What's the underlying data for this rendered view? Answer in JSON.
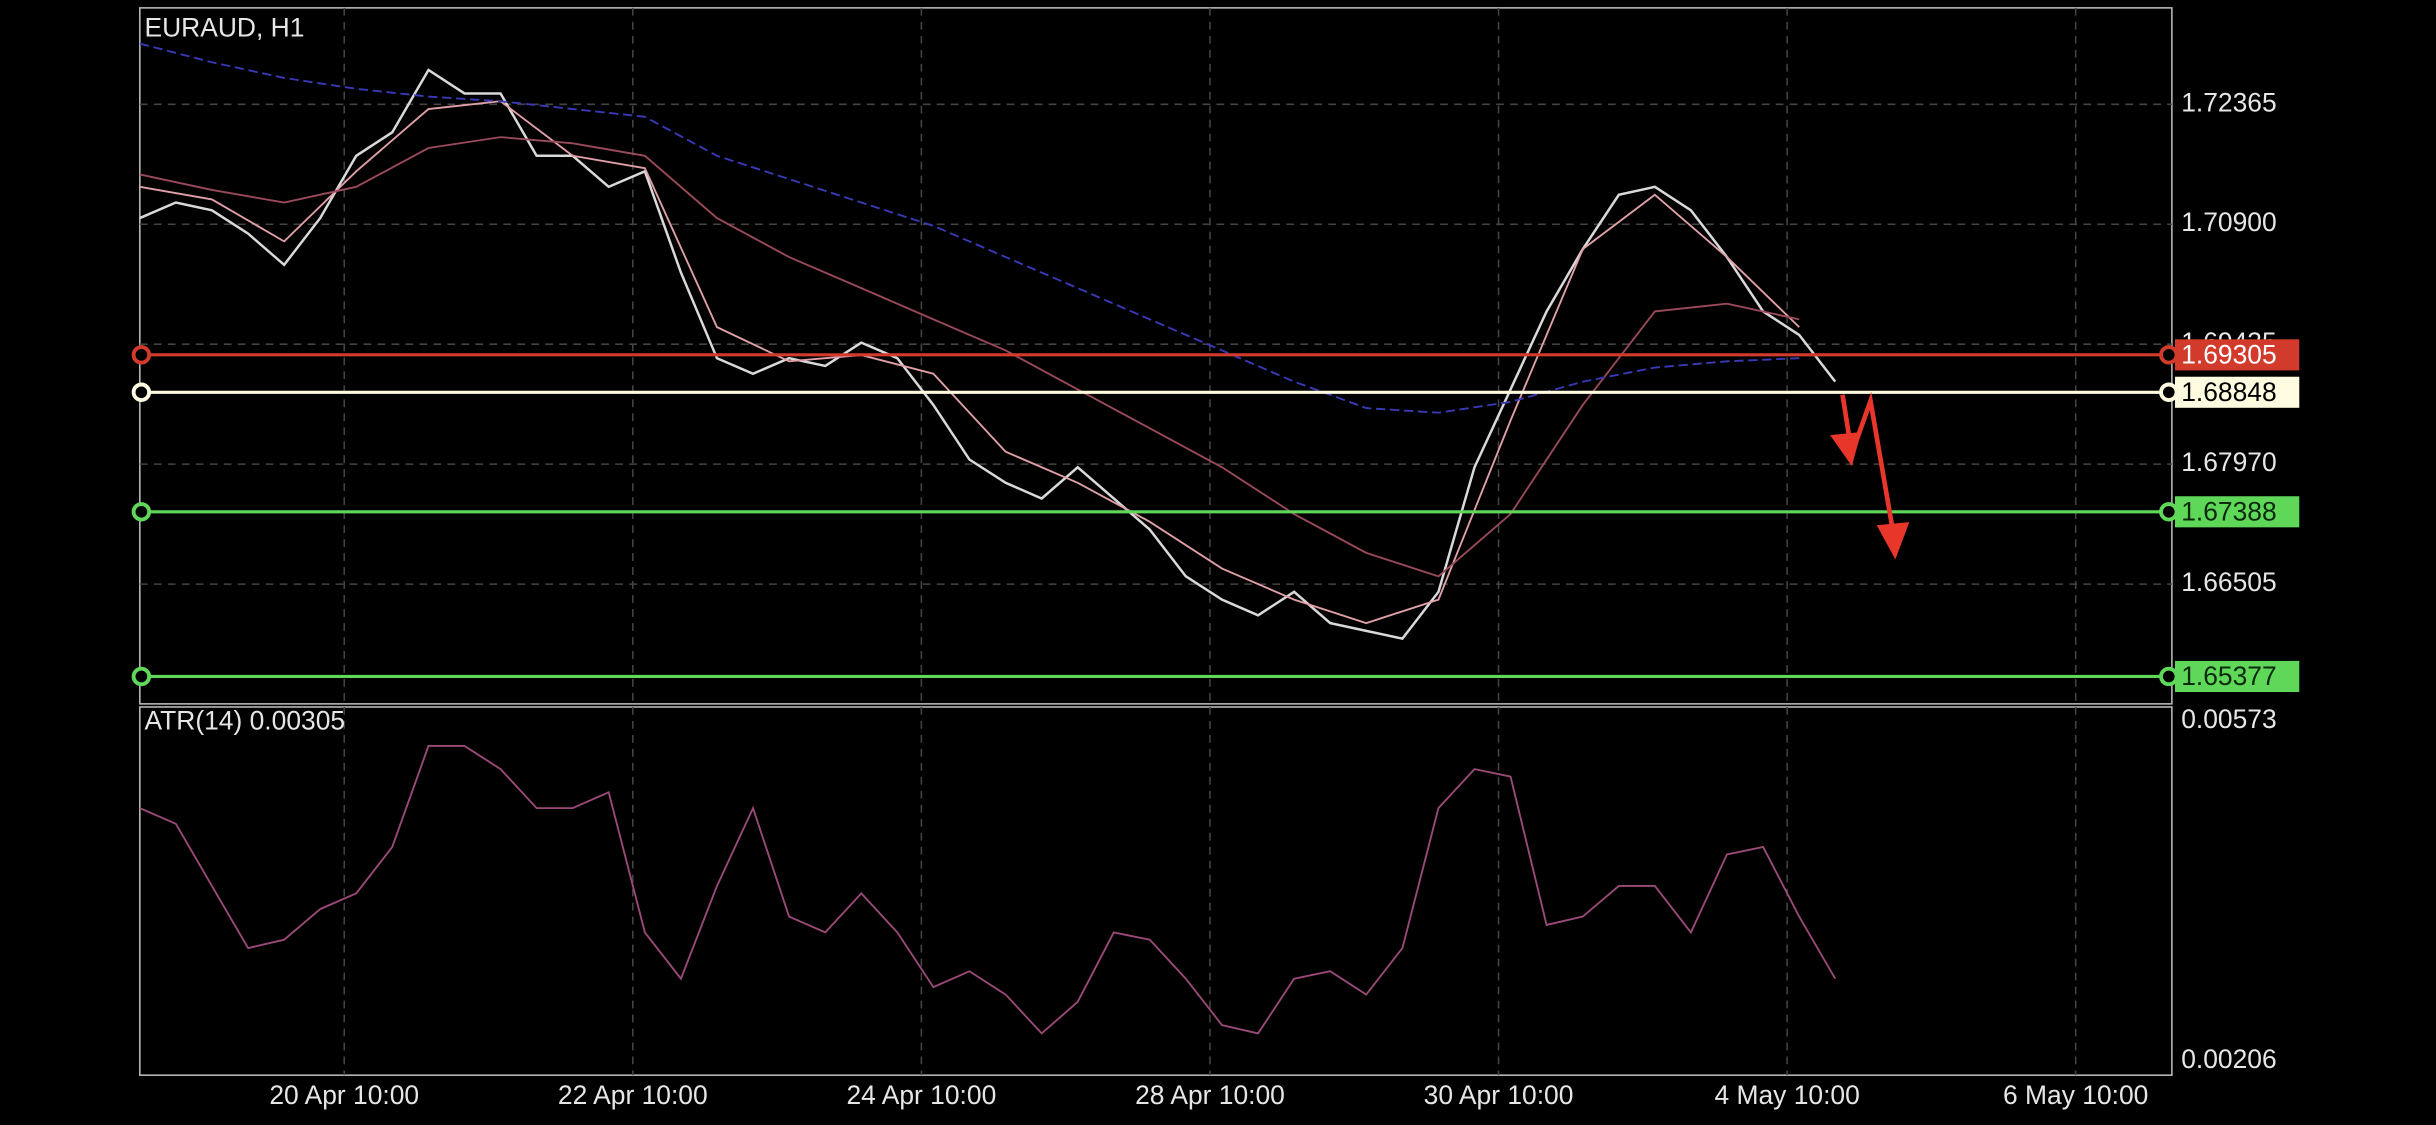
{
  "chart_data": [
    {
      "type": "line",
      "title": "EURAUD, H1",
      "xlim": [
        0,
        338
      ],
      "xticks": [
        {
          "value": 34,
          "label": "20 Apr 10:00"
        },
        {
          "value": 82,
          "label": "22 Apr 10:00"
        },
        {
          "value": 130,
          "label": "24 Apr 10:00"
        },
        {
          "value": 178,
          "label": "28 Apr 10:00"
        },
        {
          "value": 226,
          "label": "30 Apr 10:00"
        },
        {
          "value": 274,
          "label": "4 May 10:00"
        },
        {
          "value": 322,
          "label": "6 May 10:00"
        }
      ],
      "ylim": [
        1.65042,
        1.73543
      ],
      "yticks": [
        1.72365,
        {
          "value": 1.709,
          "label": "1.70900"
        },
        1.69435,
        {
          "value": 1.6797,
          "label": "1.67970"
        },
        1.66505
      ],
      "grid": true,
      "series": [
        {
          "color": "#d9d9d9",
          "x": [
            0,
            6,
            12,
            18,
            24,
            30,
            36,
            42,
            48,
            54,
            60,
            66,
            72,
            78,
            84,
            90,
            96,
            102,
            108,
            114,
            120,
            126,
            132,
            138,
            144,
            150,
            156,
            162,
            168,
            174,
            180,
            186,
            192,
            198,
            204,
            210,
            216,
            222,
            228,
            234,
            240,
            246,
            252,
            258,
            264,
            270,
            276,
            282
          ],
          "values": [
            1.70976,
            1.71166,
            1.71071,
            1.70786,
            1.70405,
            1.70976,
            1.71737,
            1.72023,
            1.72784,
            1.72498,
            1.72498,
            1.71737,
            1.71737,
            1.71357,
            1.71547,
            1.7031,
            1.69264,
            1.69074,
            1.69264,
            1.69169,
            1.69454,
            1.69264,
            1.68693,
            1.68027,
            1.67742,
            1.67551,
            1.67932,
            1.67551,
            1.67171,
            1.666,
            1.66315,
            1.66124,
            1.6641,
            1.66029,
            1.65934,
            1.65839,
            1.6641,
            1.67932,
            1.68883,
            1.69835,
            1.70596,
            1.71261,
            1.71357,
            1.71071,
            1.705,
            1.69835,
            1.69549,
            1.68978
          ]
        },
        {
          "color": "#e0a0a8",
          "x": [
            0,
            12,
            24,
            36,
            48,
            60,
            72,
            84,
            96,
            108,
            120,
            132,
            144,
            156,
            168,
            180,
            192,
            204,
            216,
            228,
            240,
            252,
            264,
            276
          ],
          "values": [
            1.71357,
            1.71204,
            1.70691,
            1.71547,
            1.72308,
            1.72403,
            1.71737,
            1.71585,
            1.69644,
            1.69226,
            1.69302,
            1.69074,
            1.68122,
            1.67742,
            1.67266,
            1.66695,
            1.66315,
            1.66029,
            1.66315,
            1.68503,
            1.70596,
            1.71261,
            1.705,
            1.69644
          ]
        },
        {
          "color": "#9a4a5a",
          "x": [
            0,
            12,
            24,
            36,
            48,
            60,
            72,
            84,
            96,
            108,
            120,
            132,
            144,
            156,
            168,
            180,
            192,
            204,
            216,
            228,
            240,
            252,
            264,
            276
          ],
          "values": [
            1.71509,
            1.71319,
            1.71166,
            1.71357,
            1.71832,
            1.71965,
            1.71889,
            1.71737,
            1.70976,
            1.705,
            1.7012,
            1.69739,
            1.69359,
            1.68883,
            1.68408,
            1.67932,
            1.67361,
            1.66886,
            1.666,
            1.67361,
            1.68693,
            1.69835,
            1.6993,
            1.69739
          ]
        },
        {
          "color": "#3a3ab8",
          "dashed": true,
          "x": [
            0,
            12,
            24,
            36,
            48,
            60,
            72,
            84,
            96,
            108,
            120,
            132,
            144,
            156,
            168,
            180,
            192,
            204,
            216,
            228,
            240,
            252,
            264,
            276
          ],
          "values": [
            1.73107,
            1.72879,
            1.72688,
            1.72555,
            1.7246,
            1.72403,
            1.72308,
            1.72213,
            1.71737,
            1.71452,
            1.71166,
            1.70881,
            1.705,
            1.7012,
            1.69739,
            1.69359,
            1.68978,
            1.68655,
            1.68598,
            1.68731,
            1.68978,
            1.6915,
            1.69226,
            1.69264
          ]
        }
      ],
      "levels": [
        {
          "value": 1.69305,
          "color": "#d23a2c",
          "text_color": "#ffffff"
        },
        {
          "value": 1.68848,
          "color": "#fffbe0",
          "text_color": "#000000"
        },
        {
          "value": 1.67388,
          "color": "#5fd85a",
          "text_color": "#0a2a0a"
        },
        {
          "value": 1.65377,
          "color": "#5fd85a",
          "text_color": "#0a2a0a"
        }
      ]
    },
    {
      "type": "line",
      "title": "ATR(14) 0.00305",
      "ylim": [
        0.00191,
        0.00588
      ],
      "yticks": [
        0.00573,
        0.00206
      ],
      "series": [
        {
          "color": "#9a4a78",
          "x": [
            0,
            6,
            12,
            18,
            24,
            30,
            36,
            42,
            48,
            54,
            60,
            66,
            72,
            78,
            84,
            90,
            96,
            102,
            108,
            114,
            120,
            126,
            132,
            138,
            144,
            150,
            156,
            162,
            168,
            174,
            180,
            186,
            192,
            198,
            204,
            210,
            216,
            222,
            228,
            234,
            240,
            246,
            252,
            258,
            264,
            270,
            276,
            282
          ],
          "values": [
            0.00479,
            0.00462,
            0.00395,
            0.00328,
            0.00337,
            0.0037,
            0.00387,
            0.00437,
            0.00546,
            0.00546,
            0.00521,
            0.00479,
            0.00479,
            0.00496,
            0.00345,
            0.00295,
            0.00395,
            0.00479,
            0.00362,
            0.00345,
            0.00387,
            0.00345,
            0.00286,
            0.00303,
            0.00278,
            0.00236,
            0.0027,
            0.00345,
            0.00337,
            0.00295,
            0.00245,
            0.00236,
            0.00295,
            0.00303,
            0.00278,
            0.00328,
            0.00479,
            0.00521,
            0.00513,
            0.00353,
            0.00362,
            0.00395,
            0.00395,
            0.00345,
            0.00429,
            0.00437,
            0.00362,
            0.00295
          ]
        }
      ]
    }
  ]
}
